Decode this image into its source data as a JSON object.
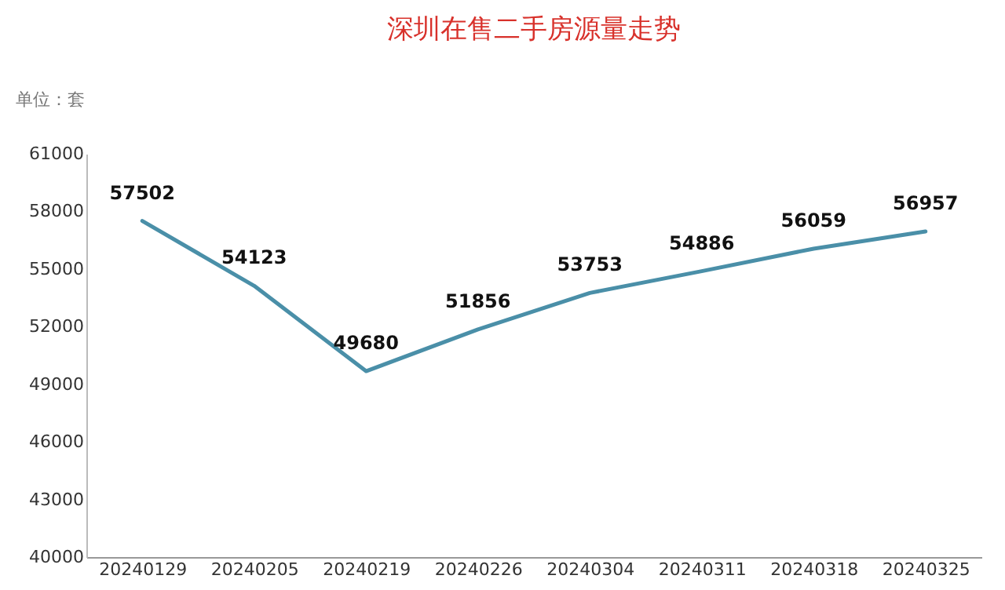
{
  "chart_data": {
    "type": "line",
    "title": "深圳在售二手房源量走势",
    "annotations": [
      "单位：套"
    ],
    "categories": [
      "20240129",
      "20240205",
      "20240219",
      "20240226",
      "20240304",
      "20240311",
      "20240318",
      "20240325"
    ],
    "series": [
      {
        "color": "#4a8fa8",
        "values": [
          57502,
          54123,
          49680,
          51856,
          53753,
          54886,
          56059,
          56957
        ]
      }
    ],
    "ylim": [
      40000,
      61000
    ],
    "yticks": [
      40000,
      43000,
      46000,
      49000,
      52000,
      55000,
      58000,
      61000
    ],
    "data_labels": true,
    "grid": false,
    "legend": false,
    "marker": "none",
    "line_style": "solid"
  }
}
